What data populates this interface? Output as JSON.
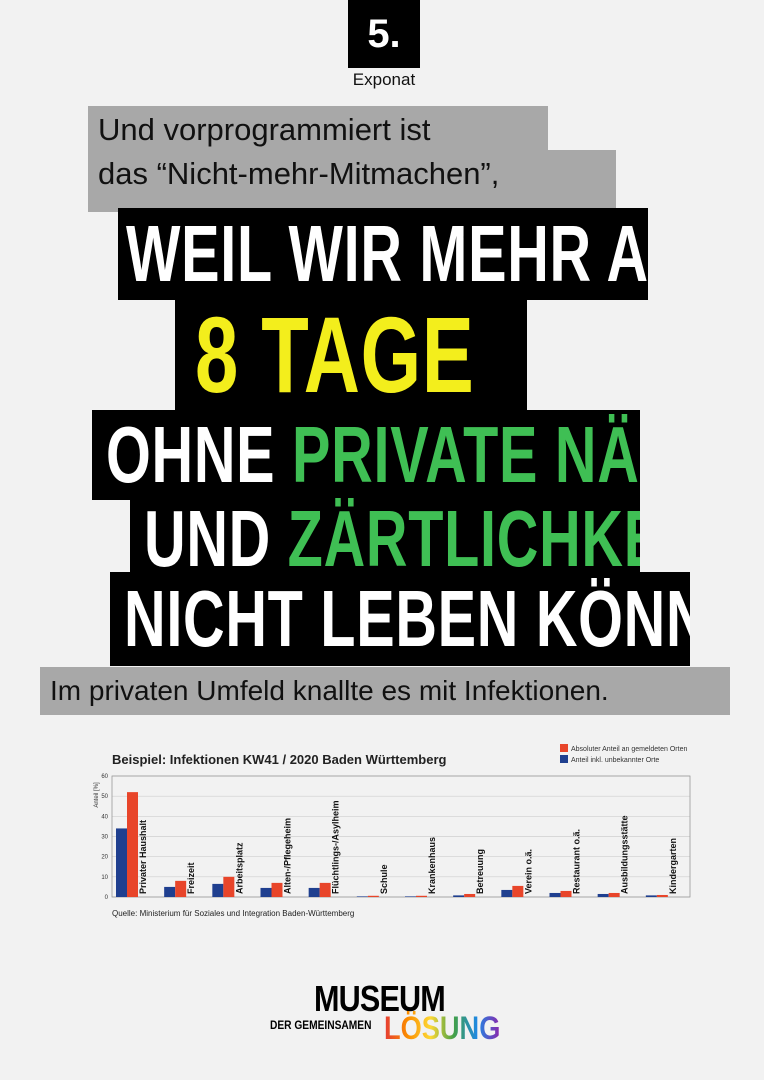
{
  "badge": "5.",
  "badge_caption": "Exponat",
  "intro": {
    "line1": "Und vorprogrammiert ist",
    "line2": "das “Nicht-mehr-Mitmachen”,"
  },
  "headline": {
    "line1": "WEIL WIR MEHR ALS",
    "line2": "8 TAGE",
    "line3a": "OHNE",
    "line3b": "PRIVATE NÄHE",
    "line4a": "UND",
    "line4b": "ZÄRTLICHKEIT",
    "line5": "NICHT LEBEN KÖNNEN."
  },
  "statement": "Im privaten Umfeld knallte es mit Infektionen.",
  "chart_data": {
    "type": "bar",
    "title": "Beispiel: Infektionen KW41 / 2020 Baden Württemberg",
    "y_label": "Anteil [%]",
    "categories": [
      "Privater Haushalt",
      "Freizeit",
      "Arbeitsplatz",
      "Alten-/Pflegeheim",
      "Flüchtlings-/Asylheim",
      "Schule",
      "Krankenhaus",
      "Betreuung",
      "Verein o.ä.",
      "Restaurant o.ä.",
      "Ausbildungsstätte",
      "Kindergarten"
    ],
    "series": [
      {
        "name": "Absoluter Anteil an gemeldeten Orten",
        "color": "#e8452a",
        "values": [
          52,
          8,
          10,
          7,
          7,
          0.6,
          0.6,
          1.5,
          5.5,
          3,
          2,
          1
        ]
      },
      {
        "name": "Anteil inkl. unbekannter Orte",
        "color": "#1f3f8f",
        "values": [
          34,
          5,
          6.5,
          4.5,
          4.5,
          0.3,
          0.3,
          0.8,
          3.5,
          2,
          1.5,
          0.8
        ]
      }
    ],
    "ylim": [
      0,
      60
    ],
    "yticks": [
      0,
      10,
      20,
      30,
      40,
      50,
      60
    ],
    "grid": true,
    "legend": "top-right",
    "source": "Quelle: Ministerium für Soziales und Integration Baden-Württemberg"
  },
  "logo": {
    "line1": "MUSEUM",
    "line2": "DER GEMEINSAMEN",
    "line3": "LÖSUNG"
  }
}
